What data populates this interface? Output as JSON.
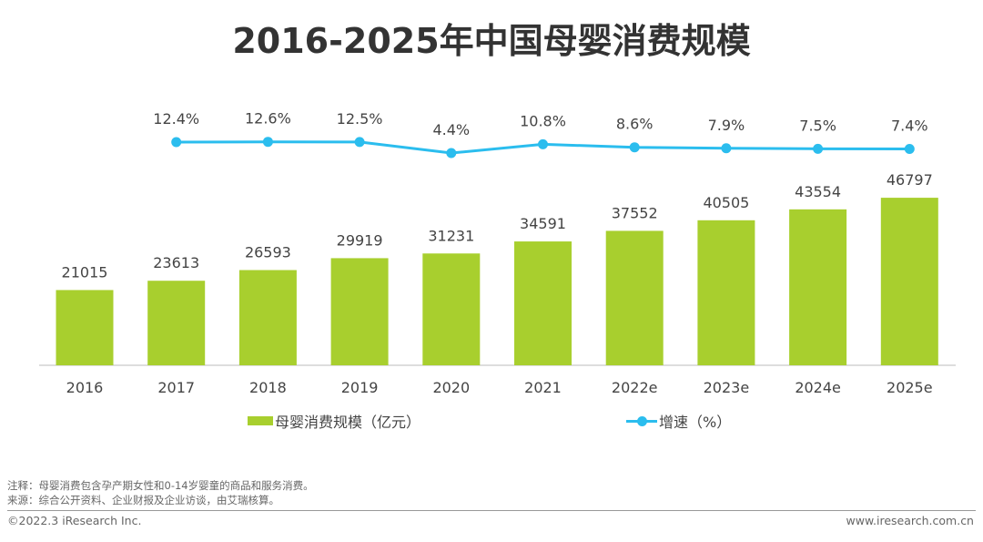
{
  "title": "2016-2025年中国母婴消费规模",
  "colors": {
    "bar": "#a8cf2e",
    "line": "#2bbdee"
  },
  "chart_data": {
    "type": "bar+line",
    "title": "2016-2025年中国母婴消费规模",
    "categories": [
      "2016",
      "2017",
      "2018",
      "2019",
      "2020",
      "2021",
      "2022e",
      "2023e",
      "2024e",
      "2025e"
    ],
    "series": [
      {
        "name": "母婴消费规模（亿元）",
        "type": "bar",
        "values": [
          21015,
          23613,
          26593,
          29919,
          31231,
          34591,
          37552,
          40505,
          43554,
          46797
        ],
        "labels": [
          "21015",
          "23613",
          "26593",
          "29919",
          "31231",
          "34591",
          "37552",
          "40505",
          "43554",
          "46797"
        ]
      },
      {
        "name": "增速（%）",
        "type": "line",
        "values": [
          null,
          12.4,
          12.6,
          12.5,
          4.4,
          10.8,
          8.6,
          7.9,
          7.5,
          7.4
        ],
        "labels": [
          "",
          "12.4%",
          "12.6%",
          "12.5%",
          "4.4%",
          "10.8%",
          "8.6%",
          "7.9%",
          "7.5%",
          "7.4%"
        ]
      }
    ],
    "legend": "bottom",
    "grid": false
  },
  "notes": {
    "note": "注释：母婴消费包含孕产期女性和0-14岁婴童的商品和服务消费。",
    "source": "来源：综合公开资料、企业财报及企业访谈，由艾瑞核算。"
  },
  "footer": {
    "copyright": "©2022.3 iResearch Inc.",
    "website": "www.iresearch.com.cn"
  }
}
